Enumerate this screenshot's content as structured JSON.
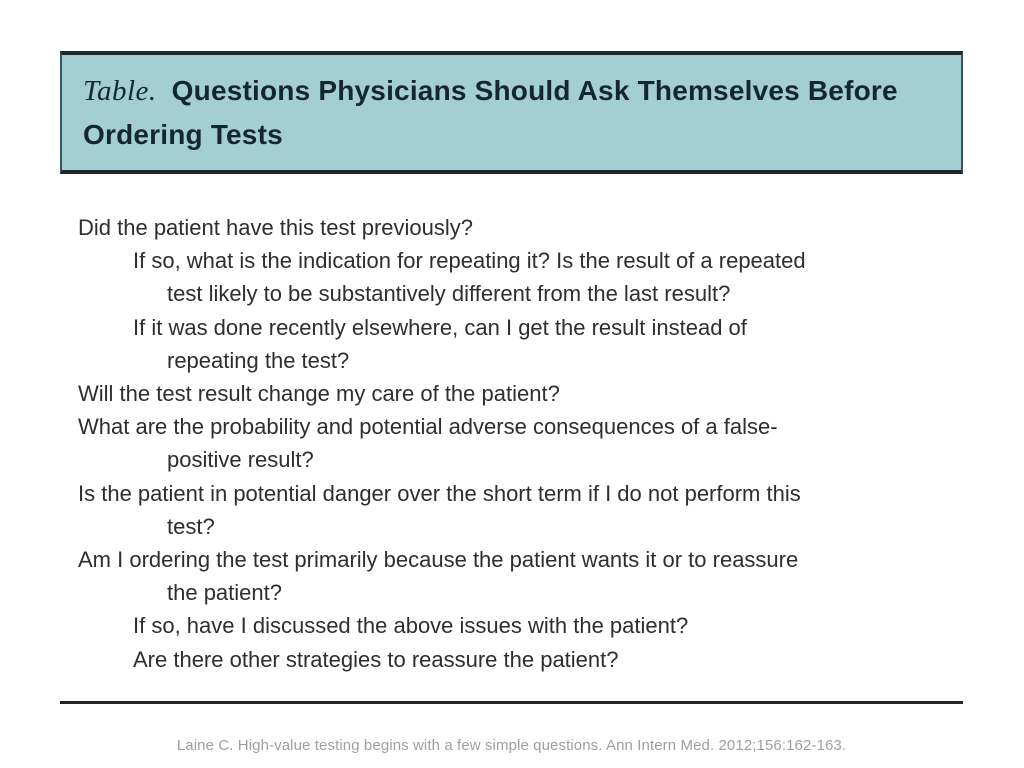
{
  "header": {
    "label": "Table.",
    "title_lines": [
      "Questions Physicians Should Ask Themselves Before",
      "Ordering Tests"
    ]
  },
  "questions": [
    {
      "indent": 0,
      "text": "Did the patient have this test previously?"
    },
    {
      "indent": 1,
      "text": "If so, what is the indication for repeating it? Is the result of a repeated"
    },
    {
      "indent": 2,
      "text": "test likely to be substantively different from the last result?"
    },
    {
      "indent": 1,
      "text": "If it was done recently elsewhere, can I get the result instead of"
    },
    {
      "indent": 2,
      "text": "repeating the test?"
    },
    {
      "indent": 0,
      "text": "Will the test result change my care of the patient?"
    },
    {
      "indent": 0,
      "text": "What are the probability and potential adverse consequences of a false-"
    },
    {
      "indent": 2,
      "text": "positive result?"
    },
    {
      "indent": 0,
      "text": "Is the patient in potential danger over the short term if I do not perform this"
    },
    {
      "indent": 2,
      "text": "test?"
    },
    {
      "indent": 0,
      "text": "Am I ordering the test primarily because the patient wants it or to reassure"
    },
    {
      "indent": 2,
      "text": "the patient?"
    },
    {
      "indent": 1,
      "text": "If so, have I discussed the above issues with the patient?"
    },
    {
      "indent": 1,
      "text": "Are there other strategies to reassure the patient?"
    }
  ],
  "citation": "Laine C. High-value testing begins with a few simple questions. Ann Intern Med. 2012;156:162-163.",
  "colors": {
    "header_background": "#a3ced3",
    "rule": "#1f292c",
    "header_text": "#142730",
    "body_text": "#2e2e2e",
    "citation_text": "#9f9f9f"
  }
}
